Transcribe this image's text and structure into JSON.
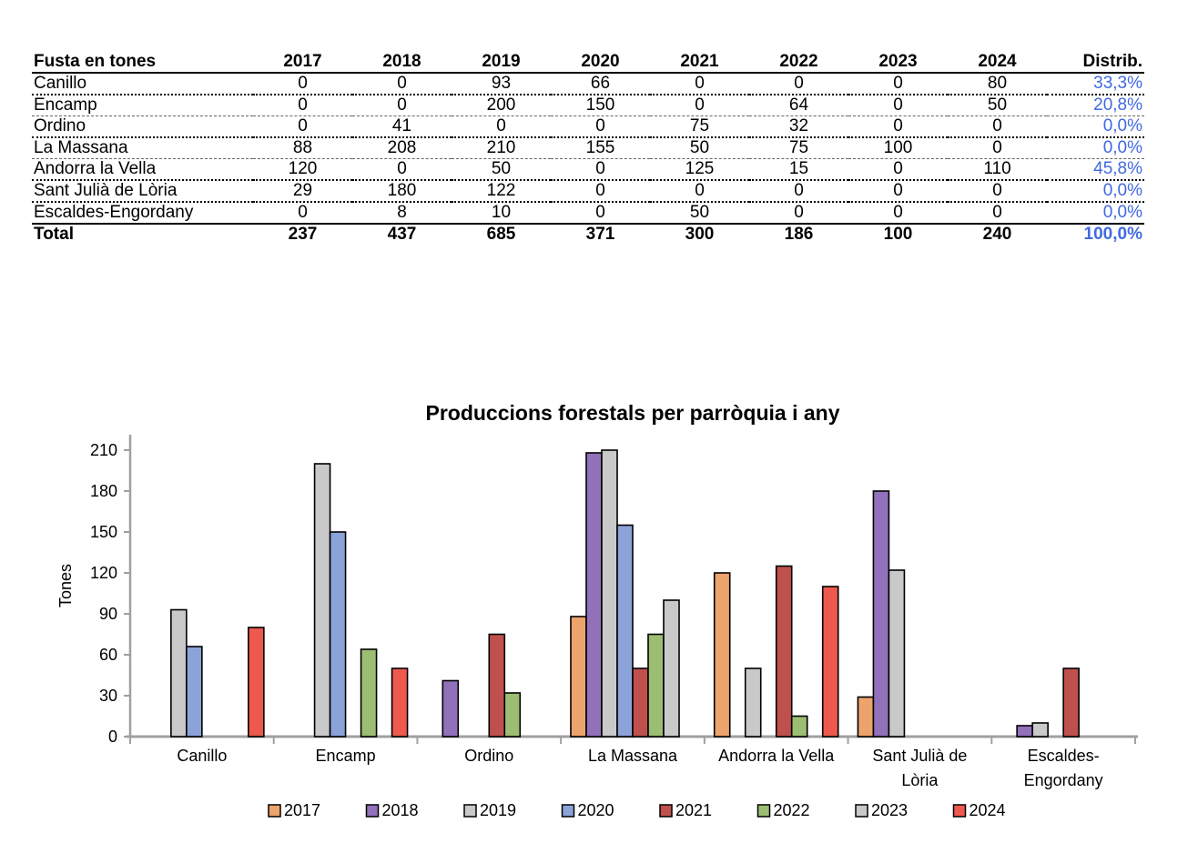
{
  "table": {
    "header": [
      "Fusta en tones",
      "2017",
      "2018",
      "2019",
      "2020",
      "2021",
      "2022",
      "2023",
      "2024",
      "Distrib."
    ],
    "rows": [
      {
        "label": "Canillo",
        "values": [
          "0",
          "0",
          "93",
          "66",
          "0",
          "0",
          "0",
          "80"
        ],
        "distrib": "33,3%"
      },
      {
        "label": "Encamp",
        "values": [
          "0",
          "0",
          "200",
          "150",
          "0",
          "64",
          "0",
          "50"
        ],
        "distrib": "20,8%"
      },
      {
        "label": "Ordino",
        "values": [
          "0",
          "41",
          "0",
          "0",
          "75",
          "32",
          "0",
          "0"
        ],
        "distrib": "0,0%"
      },
      {
        "label": "La Massana",
        "values": [
          "88",
          "208",
          "210",
          "155",
          "50",
          "75",
          "100",
          "0"
        ],
        "distrib": "0,0%"
      },
      {
        "label": "Andorra la Vella",
        "values": [
          "120",
          "0",
          "50",
          "0",
          "125",
          "15",
          "0",
          "110"
        ],
        "distrib": "45,8%"
      },
      {
        "label": "Sant Julià de Lòria",
        "values": [
          "29",
          "180",
          "122",
          "0",
          "0",
          "0",
          "0",
          "0"
        ],
        "distrib": "0,0%"
      },
      {
        "label": "Escaldes-Engordany",
        "values": [
          "0",
          "8",
          "10",
          "0",
          "50",
          "0",
          "0",
          "0"
        ],
        "distrib": "0,0%"
      }
    ],
    "total": {
      "label": "Total",
      "values": [
        "237",
        "437",
        "685",
        "371",
        "300",
        "186",
        "100",
        "240"
      ],
      "distrib": "100,0%"
    }
  },
  "colors": {
    "distrib_text": "#4169E1",
    "axis": "#A0A0A0",
    "bar_border": "#000000",
    "title_text": "#000000"
  },
  "chart_data": {
    "type": "bar",
    "title": "Produccions forestals  per parròquia i any",
    "ylabel": "Tones",
    "xlabel": "",
    "categories": [
      "Canillo",
      "Encamp",
      "Ordino",
      "La Massana",
      "Andorra la Vella",
      "Sant Julià de Lòria",
      "Escaldes-Engordany"
    ],
    "category_lines": [
      [
        "Canillo"
      ],
      [
        "Encamp"
      ],
      [
        "Ordino"
      ],
      [
        "La Massana"
      ],
      [
        "Andorra la Vella"
      ],
      [
        "Sant Julià de",
        "Lòria"
      ],
      [
        "Escaldes-",
        "Engordany"
      ]
    ],
    "series": [
      {
        "name": "2017",
        "color": "#EDA36C",
        "values": [
          0,
          0,
          0,
          88,
          120,
          29,
          0
        ]
      },
      {
        "name": "2018",
        "color": "#9271BB",
        "values": [
          0,
          0,
          41,
          208,
          0,
          180,
          8
        ]
      },
      {
        "name": "2019",
        "color": "#C9C9C9",
        "values": [
          93,
          200,
          0,
          210,
          50,
          122,
          10
        ]
      },
      {
        "name": "2020",
        "color": "#8BA3D8",
        "values": [
          66,
          150,
          0,
          155,
          0,
          0,
          0
        ]
      },
      {
        "name": "2021",
        "color": "#C0504D",
        "values": [
          0,
          0,
          75,
          50,
          125,
          0,
          50
        ]
      },
      {
        "name": "2022",
        "color": "#9CBE73",
        "values": [
          0,
          64,
          32,
          75,
          15,
          0,
          0
        ]
      },
      {
        "name": "2023",
        "color": "#C9C9C9",
        "values": [
          0,
          0,
          0,
          100,
          0,
          0,
          0
        ]
      },
      {
        "name": "2024",
        "color": "#EE594E",
        "values": [
          80,
          50,
          0,
          0,
          110,
          0,
          0
        ]
      }
    ],
    "ylim": [
      0,
      225
    ],
    "yticks": [
      0,
      30,
      60,
      90,
      120,
      150,
      180,
      210
    ],
    "grid": false,
    "legend_position": "bottom"
  }
}
